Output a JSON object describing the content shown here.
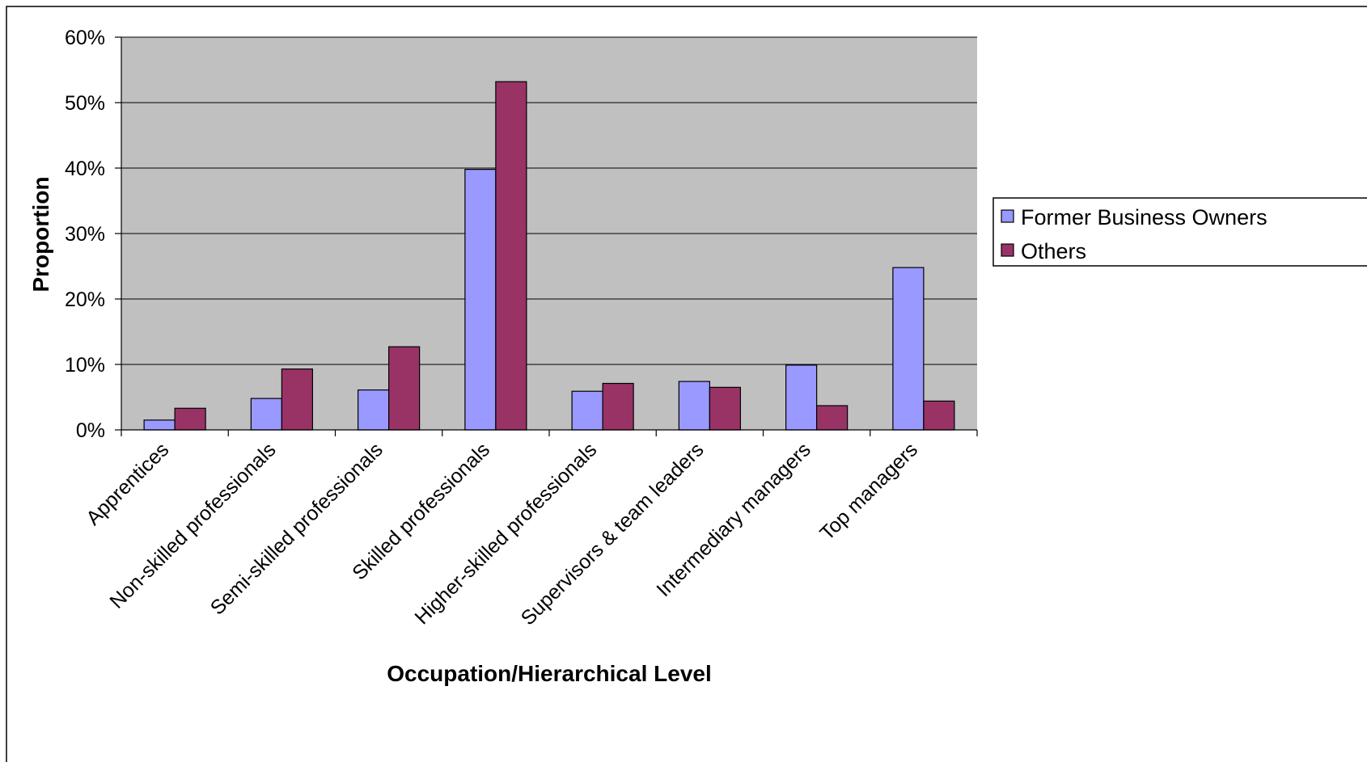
{
  "chart_data": {
    "type": "bar",
    "title": "",
    "xlabel": "Occupation/Hierarchical Level",
    "ylabel": "Proportion",
    "ylim": [
      0,
      0.6
    ],
    "yticks": [
      0,
      0.1,
      0.2,
      0.3,
      0.4,
      0.5,
      0.6
    ],
    "ytick_labels": [
      "0%",
      "10%",
      "20%",
      "30%",
      "40%",
      "50%",
      "60%"
    ],
    "grid": true,
    "legend_position": "right",
    "plot_background": "#C0C0C0",
    "categories": [
      "Apprentices",
      "Non-skilled professionals",
      "Semi-skilled professionals",
      "Skilled professionals",
      "Higher-skilled professionals",
      "Supervisors & team leaders",
      "Intermediary managers",
      "Top managers"
    ],
    "series": [
      {
        "name": "Former Business Owners",
        "color": "#9999FF",
        "values": [
          0.015,
          0.048,
          0.061,
          0.398,
          0.059,
          0.074,
          0.099,
          0.248
        ]
      },
      {
        "name": "Others",
        "color": "#993366",
        "values": [
          0.033,
          0.093,
          0.127,
          0.532,
          0.071,
          0.065,
          0.037,
          0.044
        ]
      }
    ]
  }
}
